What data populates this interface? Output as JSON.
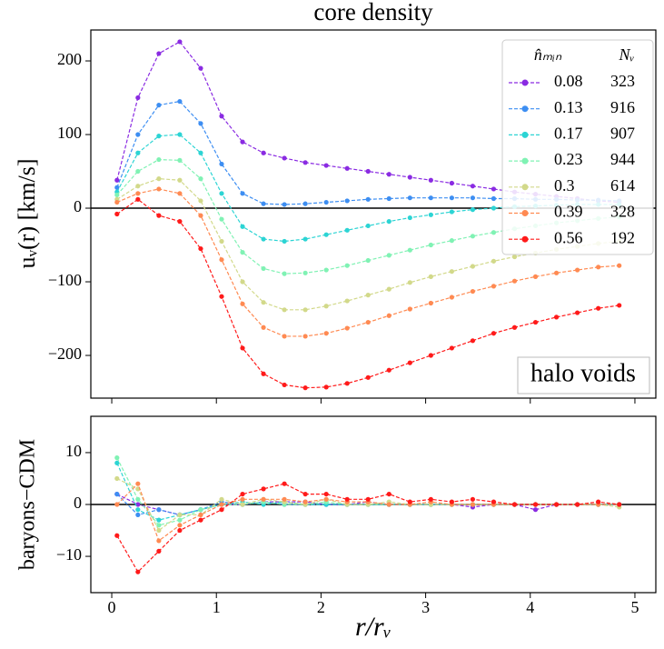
{
  "chart_data": [
    {
      "type": "line",
      "title": "core density",
      "ylabel": "uᵥ(r) [km/s]",
      "annotation": "halo voids",
      "legend_headers": [
        "n̂ₘᵢₙ",
        "Nᵥ"
      ],
      "legend": "upper right",
      "x": [
        0.05,
        0.25,
        0.45,
        0.65,
        0.85,
        1.05,
        1.25,
        1.45,
        1.65,
        1.85,
        2.05,
        2.25,
        2.45,
        2.65,
        2.85,
        3.05,
        3.25,
        3.45,
        3.65,
        3.85,
        4.05,
        4.25,
        4.45,
        4.65,
        4.85
      ],
      "xlim": [
        -0.2,
        5.2
      ],
      "xticks": [
        0,
        1,
        2,
        3,
        4,
        5
      ],
      "ylim": [
        -258,
        242
      ],
      "yticks": [
        {
          "value": -200,
          "label": "−200"
        },
        {
          "value": -100,
          "label": "−100"
        },
        0,
        100,
        200
      ],
      "series": [
        {
          "name": "0.08",
          "count": 323,
          "color": "#8a2be2",
          "values": [
            38,
            150,
            210,
            226,
            190,
            125,
            90,
            75,
            68,
            62,
            58,
            54,
            50,
            46,
            42,
            38,
            34,
            30,
            26,
            22,
            19,
            16,
            13,
            10,
            8
          ]
        },
        {
          "name": "0.13",
          "count": 916,
          "color": "#3d8ef2",
          "values": [
            28,
            100,
            140,
            145,
            115,
            60,
            20,
            6,
            5,
            6,
            8,
            10,
            12,
            13,
            14,
            14,
            14,
            14,
            13,
            13,
            12,
            12,
            11,
            11,
            10
          ]
        },
        {
          "name": "0.17",
          "count": 907,
          "color": "#2cd4d4",
          "values": [
            22,
            75,
            98,
            100,
            75,
            20,
            -25,
            -42,
            -45,
            -42,
            -36,
            -30,
            -24,
            -18,
            -13,
            -9,
            -5,
            -2,
            0,
            2,
            3,
            4,
            5,
            5,
            5
          ]
        },
        {
          "name": "0.23",
          "count": 944,
          "color": "#80f2b4",
          "values": [
            18,
            50,
            66,
            65,
            40,
            -15,
            -60,
            -82,
            -89,
            -88,
            -84,
            -78,
            -71,
            -64,
            -57,
            -50,
            -44,
            -38,
            -33,
            -28,
            -24,
            -20,
            -17,
            -14,
            -12
          ]
        },
        {
          "name": "0.3",
          "count": 614,
          "color": "#d2d98a",
          "values": [
            12,
            30,
            40,
            38,
            10,
            -45,
            -100,
            -128,
            -138,
            -138,
            -133,
            -126,
            -118,
            -110,
            -101,
            -93,
            -86,
            -79,
            -72,
            -66,
            -61,
            -56,
            -52,
            -48,
            -45
          ]
        },
        {
          "name": "0.39",
          "count": 328,
          "color": "#ff8a52",
          "values": [
            8,
            20,
            26,
            20,
            -10,
            -70,
            -130,
            -162,
            -174,
            -174,
            -170,
            -163,
            -155,
            -146,
            -137,
            -129,
            -121,
            -113,
            -106,
            -99,
            -93,
            -88,
            -84,
            -80,
            -78
          ]
        },
        {
          "name": "0.56",
          "count": 192,
          "color": "#ff1a1a",
          "values": [
            -8,
            12,
            -10,
            -18,
            -55,
            -120,
            -190,
            -225,
            -240,
            -244,
            -243,
            -238,
            -230,
            -220,
            -210,
            -200,
            -190,
            -180,
            -170,
            -162,
            -155,
            -148,
            -142,
            -136,
            -132
          ]
        }
      ]
    },
    {
      "type": "line",
      "ylabel": "baryons−CDM",
      "xlabel": "r/rᵥ",
      "x": [
        0.05,
        0.25,
        0.45,
        0.65,
        0.85,
        1.05,
        1.25,
        1.45,
        1.65,
        1.85,
        2.05,
        2.25,
        2.45,
        2.65,
        2.85,
        3.05,
        3.25,
        3.45,
        3.65,
        3.85,
        4.05,
        4.25,
        4.45,
        4.65,
        4.85
      ],
      "xlim": [
        -0.2,
        5.2
      ],
      "xticks": [
        0,
        1,
        2,
        3,
        4,
        5
      ],
      "ylim": [
        -17,
        17
      ],
      "yticks": [
        {
          "value": -10,
          "label": "−10"
        },
        0,
        10
      ],
      "series": [
        {
          "color": "#8a2be2",
          "values": [
            2,
            0,
            -1,
            -2,
            -1,
            0,
            0,
            0.5,
            0.5,
            0.5,
            0,
            0,
            0.5,
            0,
            0,
            0,
            0,
            -0.5,
            0,
            0,
            -1,
            0,
            0,
            0,
            0
          ]
        },
        {
          "color": "#3d8ef2",
          "values": [
            2,
            -2,
            -1,
            -2,
            -1,
            0.5,
            0,
            0.5,
            0,
            0,
            0,
            0,
            0,
            0,
            0,
            0,
            0,
            0,
            0,
            0,
            0,
            0,
            0,
            0,
            0
          ]
        },
        {
          "color": "#2cd4d4",
          "values": [
            8,
            -1,
            -3,
            -2,
            -1,
            0,
            0.5,
            0,
            0.5,
            0,
            0,
            0,
            0,
            0,
            0,
            0,
            0,
            0,
            0,
            0,
            0,
            0,
            0,
            0,
            0
          ]
        },
        {
          "color": "#80f2b4",
          "values": [
            9,
            1,
            -4,
            -3,
            -1,
            0,
            0,
            0.5,
            0,
            0,
            0.5,
            0,
            0,
            0,
            0,
            0,
            0,
            0,
            0,
            0,
            0,
            0,
            0,
            0,
            0
          ]
        },
        {
          "color": "#d2d98a",
          "values": [
            5,
            3,
            -5,
            -2,
            -2,
            1,
            0,
            1,
            0.5,
            0,
            1,
            0,
            0,
            0.5,
            0,
            0,
            0,
            0,
            0,
            0,
            0,
            0,
            0,
            0,
            -0.5
          ]
        },
        {
          "color": "#ff8a52",
          "values": [
            0,
            4,
            -7,
            -4,
            -2,
            0,
            1,
            1,
            1,
            0.5,
            1,
            0.5,
            0.5,
            0,
            0,
            0.5,
            0,
            0,
            0,
            0,
            0,
            0,
            0,
            0,
            0
          ]
        },
        {
          "color": "#ff1a1a",
          "values": [
            -6,
            -13,
            -9,
            -5,
            -3,
            -1,
            2,
            3,
            4,
            2,
            2,
            1,
            1,
            2,
            0.5,
            1,
            0.5,
            1,
            0.5,
            0,
            0,
            0,
            0,
            0.5,
            0
          ]
        }
      ]
    }
  ]
}
